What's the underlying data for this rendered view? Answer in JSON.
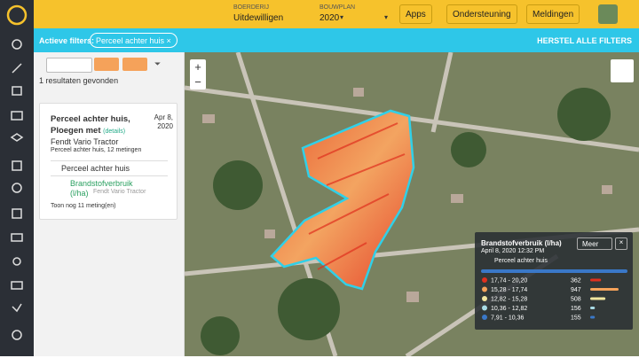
{
  "header": {
    "farm_label": "BOERDERIJ",
    "farm": "Uitdewilligen",
    "plan_label": "BOUWPLAN",
    "plan": "2020",
    "buttons": [
      "Apps",
      "Ondersteuning",
      "Meldingen"
    ]
  },
  "filters": {
    "label": "Actieve filters:",
    "chip": "Perceel achter huis",
    "reset": "HERSTEL ALLE FILTERS"
  },
  "results": {
    "count_text": "1 resultaten gevonden"
  },
  "card": {
    "title": "Perceel achter huis, Ploegen met",
    "details": "(details)",
    "date": "Apr 8, 2020",
    "machine": "Fendt Vario Tractor",
    "summary": "Perceel achter huis, 12 metingen",
    "field": "Perceel achter huis",
    "measure": "Brandstofverbruik (l/ha)",
    "measure_machine": "Fendt Vario Tractor",
    "more": "Toon nog 11 meting(en)"
  },
  "legend": {
    "title": "Brandstofverbruik (l/ha)",
    "date": "April 8, 2020 12:32 PM",
    "field": "Perceel achter huis",
    "more": "Meer",
    "rows": [
      {
        "range": "17,74 - 20,20",
        "count": 362,
        "color": "#e0301e"
      },
      {
        "range": "15,28 - 17,74",
        "count": 947,
        "color": "#f5a25a"
      },
      {
        "range": "12,82 - 15,28",
        "count": 508,
        "color": "#f3e7a0"
      },
      {
        "range": "10,36 - 12,82",
        "count": 156,
        "color": "#a8dbe6"
      },
      {
        "range": "7,91 - 10,36",
        "count": 155,
        "color": "#3a78c8"
      }
    ]
  }
}
